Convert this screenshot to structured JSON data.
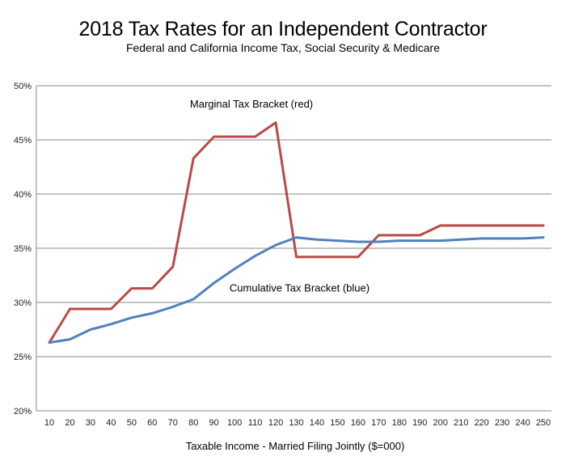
{
  "chart_data": {
    "type": "line",
    "title": "2018 Tax Rates for an Independent Contractor",
    "subtitle": "Federal and California Income Tax, Social Security & Medicare",
    "xlabel": "Taxable Income - Married Filing Jointly ($=000)",
    "ylabel": "",
    "x": [
      10,
      20,
      30,
      40,
      50,
      60,
      70,
      80,
      90,
      100,
      110,
      120,
      130,
      140,
      150,
      160,
      170,
      180,
      190,
      200,
      210,
      220,
      230,
      240,
      250
    ],
    "ylim": [
      20,
      50
    ],
    "yticks": [
      20,
      25,
      30,
      35,
      40,
      45,
      50
    ],
    "ytick_labels": [
      "20%",
      "25%",
      "30%",
      "35%",
      "40%",
      "45%",
      "50%"
    ],
    "grid": "horizontal",
    "series": [
      {
        "name": "",
        "color": "#b94a48",
        "points": [
          [
            10,
            26.3
          ],
          [
            20,
            29.4
          ],
          [
            40,
            29.4
          ],
          [
            50,
            31.3
          ],
          [
            60,
            31.3
          ],
          [
            70,
            33.3
          ],
          [
            80,
            43.3
          ],
          [
            90,
            45.3
          ],
          [
            110,
            45.3
          ],
          [
            120,
            46.6
          ],
          [
            130,
            34.2
          ],
          [
            160,
            34.2
          ],
          [
            170,
            36.2
          ],
          [
            190,
            36.2
          ],
          [
            200,
            37.1
          ],
          [
            250,
            37.1
          ]
        ]
      },
      {
        "name": "",
        "color": "#4f81bd",
        "points": [
          [
            10,
            26.3
          ],
          [
            20,
            26.6
          ],
          [
            30,
            27.5
          ],
          [
            40,
            28.0
          ],
          [
            50,
            28.6
          ],
          [
            60,
            29.0
          ],
          [
            70,
            29.6
          ],
          [
            80,
            30.3
          ],
          [
            90,
            31.8
          ],
          [
            100,
            33.1
          ],
          [
            110,
            34.3
          ],
          [
            120,
            35.3
          ],
          [
            130,
            36.0
          ],
          [
            140,
            35.8
          ],
          [
            150,
            35.7
          ],
          [
            160,
            35.6
          ],
          [
            170,
            35.6
          ],
          [
            180,
            35.7
          ],
          [
            190,
            35.7
          ],
          [
            200,
            35.7
          ],
          [
            210,
            35.8
          ],
          [
            220,
            35.9
          ],
          [
            230,
            35.9
          ],
          [
            240,
            35.9
          ],
          [
            250,
            36.0
          ]
        ]
      }
    ],
    "annotations": [
      {
        "text": "Marginal Tax Bracket (red)",
        "x": 160,
        "y": 49.0
      },
      {
        "text": "Cumulative Tax Bracket (blue)",
        "x": 370,
        "y": 311.0
      }
    ]
  }
}
